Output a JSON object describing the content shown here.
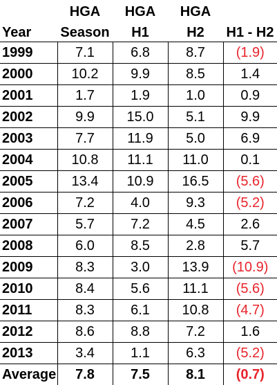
{
  "headers": {
    "top": [
      "",
      "HGA",
      "HGA",
      "HGA",
      ""
    ],
    "bottom": [
      "Year",
      "Season",
      "H1",
      "H2",
      "H1 - H2"
    ]
  },
  "rows": [
    {
      "year": "1999",
      "season": "7.1",
      "h1": "6.8",
      "h2": "8.7",
      "diff": "(1.9)",
      "neg": true
    },
    {
      "year": "2000",
      "season": "10.2",
      "h1": "9.9",
      "h2": "8.5",
      "diff": "1.4",
      "neg": false
    },
    {
      "year": "2001",
      "season": "1.7",
      "h1": "1.9",
      "h2": "1.0",
      "diff": "0.9",
      "neg": false
    },
    {
      "year": "2002",
      "season": "9.9",
      "h1": "15.0",
      "h2": "5.1",
      "diff": "9.9",
      "neg": false
    },
    {
      "year": "2003",
      "season": "7.7",
      "h1": "11.9",
      "h2": "5.0",
      "diff": "6.9",
      "neg": false
    },
    {
      "year": "2004",
      "season": "10.8",
      "h1": "11.1",
      "h2": "11.0",
      "diff": "0.1",
      "neg": false
    },
    {
      "year": "2005",
      "season": "13.4",
      "h1": "10.9",
      "h2": "16.5",
      "diff": "(5.6)",
      "neg": true
    },
    {
      "year": "2006",
      "season": "7.2",
      "h1": "4.0",
      "h2": "9.3",
      "diff": "(5.2)",
      "neg": true
    },
    {
      "year": "2007",
      "season": "5.7",
      "h1": "7.2",
      "h2": "4.5",
      "diff": "2.6",
      "neg": false
    },
    {
      "year": "2008",
      "season": "6.0",
      "h1": "8.5",
      "h2": "2.8",
      "diff": "5.7",
      "neg": false
    },
    {
      "year": "2009",
      "season": "8.3",
      "h1": "3.0",
      "h2": "13.9",
      "diff": "(10.9)",
      "neg": true
    },
    {
      "year": "2010",
      "season": "8.4",
      "h1": "5.6",
      "h2": "11.1",
      "diff": "(5.6)",
      "neg": true
    },
    {
      "year": "2011",
      "season": "8.3",
      "h1": "6.1",
      "h2": "10.8",
      "diff": "(4.7)",
      "neg": true
    },
    {
      "year": "2012",
      "season": "8.6",
      "h1": "8.8",
      "h2": "7.2",
      "diff": "1.6",
      "neg": false
    },
    {
      "year": "2013",
      "season": "3.4",
      "h1": "1.1",
      "h2": "6.3",
      "diff": "(5.2)",
      "neg": true
    }
  ],
  "average": {
    "label": "Average",
    "season": "7.8",
    "h1": "7.5",
    "h2": "8.1",
    "diff": "(0.7)",
    "neg": true
  },
  "colors": {
    "negative": "#e8242c",
    "text": "#000000",
    "grid": "#000000"
  }
}
